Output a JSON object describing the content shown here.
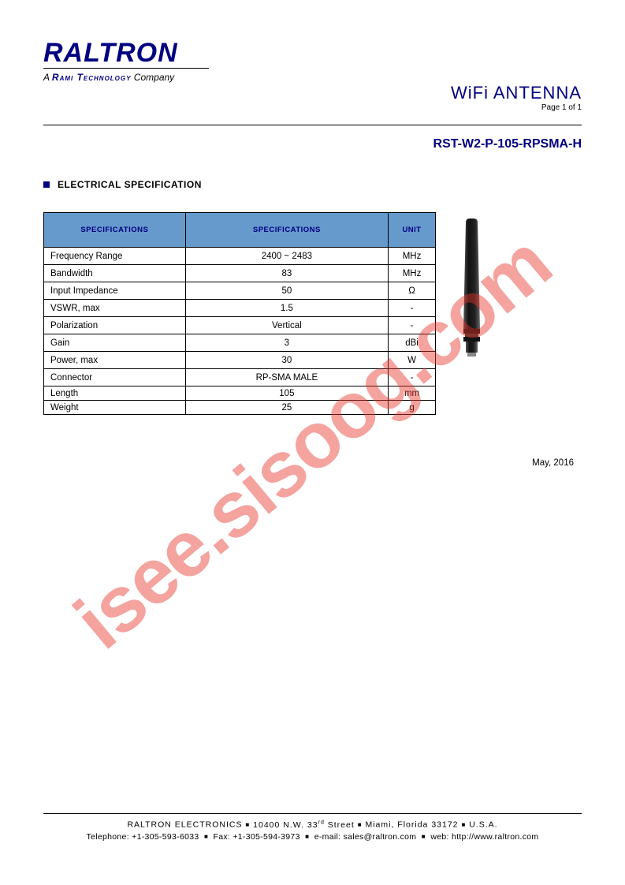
{
  "logo": {
    "main": "RALTRON",
    "tagline_prefix": "A ",
    "tagline_brand": "Rami Technology",
    "tagline_suffix": " Company"
  },
  "header": {
    "title": "WiFi ANTENNA",
    "page_label": "Page 1 of 1",
    "model": "RST-W2-P-105-RPSMA-H"
  },
  "section_title": "ELECTRICAL SPECIFICATION",
  "table": {
    "columns": [
      "SPECIFICATIONS",
      "SPECIFICATIONS",
      "UNIT"
    ],
    "rows": [
      {
        "label": "Frequency Range",
        "value": "2400 ~ 2483",
        "unit": "MHz",
        "tight": false
      },
      {
        "label": "Bandwidth",
        "value": "83",
        "unit": "MHz",
        "tight": false
      },
      {
        "label": "Input Impedance",
        "value": "50",
        "unit": "Ω",
        "tight": false
      },
      {
        "label": "VSWR, max",
        "value": "1.5",
        "unit": "-",
        "tight": false
      },
      {
        "label": "Polarization",
        "value": "Vertical",
        "unit": "-",
        "tight": false
      },
      {
        "label": "Gain",
        "value": "3",
        "unit": "dBi",
        "tight": false
      },
      {
        "label": "Power, max",
        "value": "30",
        "unit": "W",
        "tight": false
      },
      {
        "label": "Connector",
        "value": "RP-SMA  MALE",
        "unit": "-",
        "tight": false
      },
      {
        "label": "Length",
        "value": "105",
        "unit": "mm",
        "tight": true
      },
      {
        "label": "Weight",
        "value": "25",
        "unit": "g",
        "tight": true
      }
    ],
    "header_bg": "#6699cc",
    "header_color": "#000080",
    "border_color": "#000000"
  },
  "date": "May, 2016",
  "footer": {
    "line1_company": "RALTRON ELECTRONICS",
    "line1_addr": "10400 N.W. 33",
    "line1_addr_suffix": "rd",
    "line1_addr2": " Street",
    "line1_city": "Miami, Florida 33172",
    "line1_country": "U.S.A.",
    "tel_label": "Telephone:",
    "tel": "+1-305-593-6033",
    "fax_label": "Fax:",
    "fax": "+1-305-594-3973",
    "email_label": "e-mail:",
    "email": "sales@raltron.com",
    "web_label": "web:",
    "web": "http://www.raltron.com"
  },
  "watermark": "isee.sisoog.com",
  "colors": {
    "brand": "#000080",
    "watermark": "rgba(231,52,39,0.45)",
    "background": "#ffffff"
  }
}
